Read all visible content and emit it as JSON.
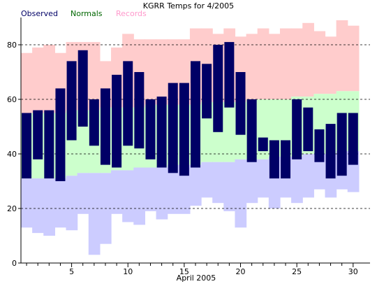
{
  "chart_data": {
    "type": "bar",
    "title": "KGRR Temps for 4/2005",
    "xlabel": "April 2005",
    "ylabel": "",
    "legend_placement": "top-left",
    "legend": [
      {
        "name": "Observed",
        "color": "#000066"
      },
      {
        "name": "Normals",
        "color": "#006600"
      },
      {
        "name": "Records",
        "color": "#ff99cc"
      }
    ],
    "xlim": [
      0.5,
      31.5
    ],
    "ylim": [
      0,
      90
    ],
    "x_ticks": [
      5,
      10,
      15,
      20,
      25,
      30
    ],
    "y_ticks": [
      0,
      20,
      40,
      60,
      80
    ],
    "gridlines_y": [
      20,
      40,
      60,
      80
    ],
    "days": [
      1,
      2,
      3,
      4,
      5,
      6,
      7,
      8,
      9,
      10,
      11,
      12,
      13,
      14,
      15,
      16,
      17,
      18,
      19,
      20,
      21,
      22,
      23,
      24,
      25,
      26,
      27,
      28,
      29,
      30
    ],
    "series": [
      {
        "name": "Record High",
        "color": "#ffcccc",
        "values": [
          77,
          79,
          80,
          77,
          81,
          81,
          81,
          74,
          79,
          84,
          82,
          82,
          82,
          82,
          82,
          86,
          86,
          84,
          86,
          83,
          84,
          86,
          84,
          86,
          86,
          88,
          85,
          83,
          89,
          87
        ]
      },
      {
        "name": "Normal High",
        "color": "#ccffcc",
        "values": [
          55,
          55,
          55,
          55,
          56,
          56,
          56,
          57,
          57,
          57,
          57,
          58,
          58,
          58,
          58,
          58,
          59,
          59,
          59,
          59,
          60,
          60,
          60,
          60,
          61,
          61,
          62,
          62,
          63,
          63
        ]
      },
      {
        "name": "Normal Low",
        "color": "#ccccff",
        "values": [
          31,
          31,
          31,
          31,
          32,
          33,
          33,
          33,
          34,
          34,
          35,
          35,
          35,
          36,
          36,
          36,
          37,
          37,
          37,
          38,
          38,
          38,
          39,
          39,
          39,
          40,
          40,
          40,
          41,
          41
        ]
      },
      {
        "name": "Record Low",
        "color": "#ffffff",
        "values": [
          13,
          11,
          10,
          13,
          12,
          18,
          3,
          7,
          18,
          15,
          14,
          19,
          16,
          18,
          18,
          21,
          24,
          22,
          19,
          13,
          22,
          24,
          20,
          24,
          22,
          24,
          27,
          24,
          27,
          26
        ]
      },
      {
        "name": "Observed High",
        "color": "#000066",
        "values": [
          55,
          56,
          56,
          64,
          74,
          78,
          60,
          64,
          69,
          74,
          70,
          60,
          61,
          66,
          66,
          74,
          73,
          80,
          81,
          70,
          60,
          46,
          45,
          45,
          60,
          57,
          49,
          51,
          55,
          55
        ]
      },
      {
        "name": "Observed Low",
        "color": "#000066",
        "values": [
          31,
          38,
          31,
          30,
          45,
          50,
          43,
          36,
          35,
          43,
          42,
          38,
          35,
          33,
          32,
          35,
          53,
          48,
          57,
          47,
          37,
          41,
          31,
          31,
          38,
          41,
          37,
          31,
          32,
          36
        ]
      }
    ]
  }
}
